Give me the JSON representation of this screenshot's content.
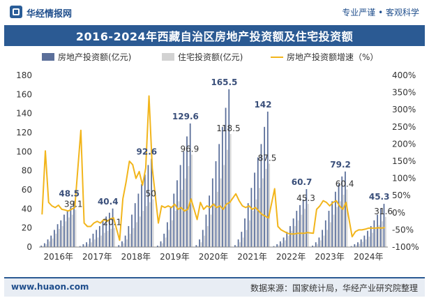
{
  "header": {
    "brand": "华经情报网",
    "motto": "专业严谨 • 客观科学"
  },
  "title": "2016-2024年西藏自治区房地产投资额及住宅投资额",
  "footer": {
    "website": "www.huaon.com",
    "source": "数据来源：国家统计局，华经产业研究院整理"
  },
  "colors": {
    "real_estate": "#5b6f9a",
    "residential": "#d2d2d2",
    "growth": "#f2b51b",
    "title_bg": "#2b5a93"
  },
  "chart_data": {
    "type": "bar",
    "legend": [
      "房地产投资额(亿元)",
      "住宅投资额(亿元)",
      "房地产投资额增速（%）"
    ],
    "legend_position": "top",
    "y_left": {
      "min": 0,
      "max": 180,
      "ticks": [
        "0",
        "20",
        "40",
        "60",
        "80",
        "100",
        "120",
        "140",
        "160",
        "180"
      ]
    },
    "y_right": {
      "min": -100,
      "max": 400,
      "ticks": [
        "-100%",
        "-50%",
        "0%",
        "50%",
        "100%",
        "150%",
        "200%",
        "250%",
        "300%",
        "350%",
        "400%"
      ]
    },
    "x_labels": [
      "2016年",
      "2017年",
      "2018年",
      "2019年",
      "2020年",
      "2021年",
      "2022年",
      "2023年",
      "2024年"
    ],
    "years": [
      {
        "year": "2016年",
        "re": [
          1.5,
          4,
          8,
          12,
          18,
          24,
          28,
          34,
          38,
          42,
          48.5
        ],
        "res": [
          1,
          3,
          6,
          9,
          14,
          19,
          22,
          27,
          31,
          34,
          39.1
        ],
        "g": [
          -5,
          180,
          30,
          20,
          15,
          22,
          10,
          8,
          5,
          10,
          15
        ],
        "label_re": "48.5",
        "label_res": "39.1"
      },
      {
        "year": "2017年",
        "re": [
          1,
          3,
          5,
          9,
          14,
          18,
          22,
          28,
          32,
          36,
          40.4
        ],
        "res": [
          0.5,
          1.5,
          3,
          5,
          8,
          10,
          12,
          15,
          17,
          19,
          20.1
        ],
        "g": [
          240,
          -30,
          -40,
          -40,
          -30,
          -25,
          -30,
          -20,
          -25,
          -18,
          -15
        ],
        "label_re": "40.4",
        "label_res": "20.1"
      },
      {
        "year": "2018年",
        "re": [
          2,
          6,
          12,
          22,
          34,
          46,
          56,
          66,
          76,
          86,
          92.6
        ],
        "res": [
          1,
          4,
          8,
          14,
          20,
          26,
          32,
          38,
          43,
          47,
          50
        ],
        "g": [
          -80,
          40,
          90,
          150,
          140,
          100,
          120,
          80,
          130,
          340,
          130
        ],
        "label_re": "92.6",
        "label_res": "50"
      },
      {
        "year": "2019年",
        "re": [
          1.5,
          6,
          14,
          26,
          42,
          56,
          70,
          86,
          100,
          116,
          129.6
        ],
        "res": [
          1,
          4,
          10,
          18,
          28,
          38,
          48,
          60,
          72,
          85,
          96.9
        ],
        "g": [
          -30,
          20,
          15,
          20,
          15,
          25,
          10,
          15,
          5,
          10,
          40
        ],
        "label_re": "129.6",
        "label_res": "96.9"
      },
      {
        "year": "2020年",
        "re": [
          2,
          8,
          18,
          34,
          54,
          72,
          90,
          108,
          126,
          146,
          165.5
        ],
        "res": [
          1,
          5,
          12,
          22,
          34,
          46,
          58,
          72,
          86,
          102,
          118.5
        ],
        "g": [
          -20,
          30,
          10,
          20,
          15,
          25,
          15,
          20,
          10,
          25,
          30
        ],
        "label_re": "165.5",
        "label_res": "118.5"
      },
      {
        "year": "2021年",
        "re": [
          2,
          8,
          16,
          30,
          46,
          62,
          78,
          94,
          108,
          126,
          142
        ],
        "res": [
          1,
          5,
          10,
          18,
          28,
          38,
          50,
          62,
          72,
          82,
          87.5
        ],
        "g": [
          55,
          35,
          20,
          15,
          20,
          10,
          15,
          5,
          -5,
          -10,
          -15
        ],
        "label_re": "142",
        "label_res": "87.5"
      },
      {
        "year": "2022年",
        "re": [
          1,
          3,
          6,
          10,
          16,
          22,
          30,
          38,
          44,
          50,
          60.7
        ],
        "res": [
          0.5,
          2,
          4,
          7,
          12,
          17,
          22,
          28,
          34,
          40,
          45.3
        ],
        "g": [
          70,
          -40,
          -50,
          -55,
          -60,
          -62,
          -62,
          -60,
          -60,
          -60,
          -58
        ],
        "label_re": "60.7",
        "label_res": "45.3"
      },
      {
        "year": "2023年",
        "re": [
          1.5,
          5,
          10,
          18,
          28,
          38,
          48,
          58,
          66,
          74,
          79.2
        ],
        "res": [
          1,
          3,
          7,
          12,
          18,
          26,
          34,
          42,
          48,
          55,
          60.4
        ],
        "g": [
          -60,
          10,
          20,
          35,
          30,
          20,
          30,
          35,
          20,
          10,
          30
        ],
        "label_re": "79.2",
        "label_res": "60.4"
      },
      {
        "year": "2024年",
        "re": [
          1,
          3,
          5,
          8,
          12,
          17,
          22,
          28,
          34,
          40,
          45.3
        ],
        "res": [
          0.5,
          2,
          3.5,
          5.5,
          8,
          11,
          15,
          19,
          23,
          27,
          31.6
        ],
        "g": [
          -70,
          -55,
          -50,
          -50,
          -48,
          -45,
          -45,
          -45,
          -44,
          -45,
          -43
        ],
        "label_re": "45.3",
        "label_res": "31.6"
      }
    ]
  }
}
